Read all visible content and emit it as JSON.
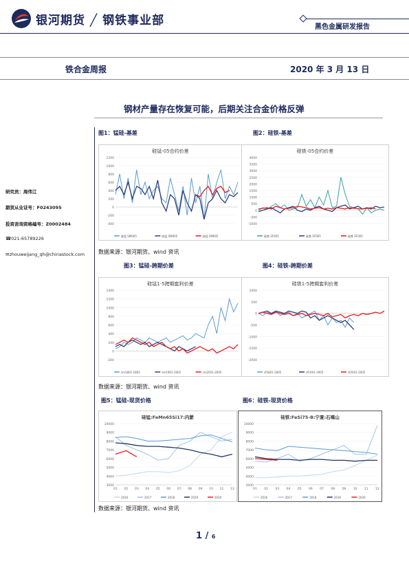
{
  "header": {
    "brand": "银河期货 ╱ 钢铁事业部",
    "report_type": "黑色金属研发报告",
    "colors": {
      "brand": "#1d2a5c",
      "logo_red": "#e23b2e"
    }
  },
  "band": {
    "report_name": "铁合金周报",
    "date": "2020 年 3 月 13 日"
  },
  "title": "钢材产量存在恢复可能，后期关注合金价格反弹",
  "sidebar": {
    "analyst": "研究员：周伟江",
    "license": "期货从业证号：F0243095",
    "advisor": "投资咨询资格编号：Z0002484",
    "phone": "☎021-65789226",
    "email": "✉zhouweijang_qh@chinastock.com"
  },
  "figures": {
    "fig1_caption": "图1：锰硅-基差",
    "fig2_caption": "图2：硅铁-基差",
    "fig3_caption": "图3：锰硅-跨期价差",
    "fig4_caption": "图4：硅铁-跨期价差",
    "fig5_caption": "图5：锰硅-现货价格",
    "fig6_caption": "图6：硅铁-现货价格",
    "source1": "数据来源：银河期货、wind 资讯",
    "source2": "数据来源：银河期货、wind 资讯",
    "source3": "数据来源：银河期货、wind 资讯"
  },
  "pager": {
    "current": "1",
    "sep": "/",
    "total": "6"
  },
  "chart_data": [
    {
      "type": "line",
      "title": "硅锰-05合约价差",
      "ylim": [
        -400,
        1200
      ],
      "y_ticks": [
        "1200",
        "1000",
        "800",
        "600",
        "400",
        "200",
        "0",
        "-200",
        "-400"
      ],
      "series": [
        {
          "name": "硅锰 SM005",
          "color": "#5b9bd5",
          "values": [
            300,
            800,
            200,
            700,
            100,
            900,
            300,
            600,
            200,
            400,
            500,
            200,
            100,
            700,
            300,
            -100,
            500,
            -200,
            700,
            100,
            500,
            -300,
            800,
            200,
            600,
            900,
            200,
            500,
            300,
            600
          ]
        },
        {
          "name": "硅锰 SM005",
          "color": "#2f3f7a",
          "values": [
            400,
            500,
            300,
            600,
            200,
            500,
            450,
            300,
            500,
            200,
            650,
            100,
            -100,
            300,
            200,
            -200,
            400,
            100,
            -100,
            300,
            200,
            -300,
            100,
            200,
            400,
            200,
            100,
            300,
            250,
            350
          ]
        },
        {
          "name": "硅锰 SM005",
          "color": "#e8181f",
          "values": [
            null,
            null,
            null,
            null,
            null,
            null,
            null,
            null,
            null,
            null,
            null,
            null,
            null,
            null,
            null,
            null,
            null,
            null,
            null,
            300,
            250,
            400,
            500,
            300,
            450,
            500,
            350,
            400,
            null,
            null
          ]
        }
      ]
    },
    {
      "type": "line",
      "title": "硅铁-05合约价差",
      "ylim": [
        -1000,
        4000
      ],
      "y_ticks": [
        "4000",
        "3500",
        "3000",
        "2500",
        "2000",
        "1500",
        "1000",
        "500",
        "0",
        "-500",
        "-1000"
      ],
      "series": [
        {
          "name": "硅铁 SF005",
          "color": "#3aa0a0",
          "values": [
            0,
            200,
            100,
            300,
            500,
            200,
            400,
            0,
            100,
            200,
            1200,
            300,
            800,
            200,
            1000,
            400,
            1500,
            200,
            300,
            2500,
            1200,
            300,
            200,
            100,
            -300,
            200,
            -200,
            0,
            100,
            0
          ]
        },
        {
          "name": "硅铁 SF005",
          "color": "#2f3f7a",
          "values": [
            -100,
            0,
            100,
            200,
            0,
            -200,
            100,
            200,
            300,
            0,
            -100,
            100,
            0,
            200,
            300,
            100,
            0,
            -100,
            200,
            300,
            400,
            100,
            200,
            300,
            100,
            200,
            100,
            300,
            200,
            250
          ]
        },
        {
          "name": "硅铁 SF005",
          "color": "#e8181f",
          "values": [
            100,
            150,
            200,
            100,
            300,
            200,
            100,
            150,
            200,
            300,
            250,
            200,
            100,
            150,
            200,
            100,
            150,
            100,
            200,
            150,
            100,
            200,
            150,
            120,
            100,
            150,
            200,
            100,
            null,
            null
          ]
        }
      ]
    },
    {
      "type": "line",
      "title": "硅锰1-5跨期套利价差",
      "ylim": [
        -200,
        1400
      ],
      "y_ticks": [
        "1400",
        "1200",
        "1000",
        "800",
        "600",
        "400",
        "200",
        "0",
        "-200"
      ],
      "series": [
        {
          "name": "sm1801-1805",
          "color": "#5b9bd5",
          "values": [
            50,
            100,
            200,
            150,
            200,
            300,
            250,
            200,
            300,
            250,
            200,
            250,
            300,
            200,
            250,
            300,
            350,
            250,
            300,
            400,
            350,
            300,
            600,
            800,
            400,
            1000,
            700,
            1200,
            900,
            1100
          ]
        },
        {
          "name": "sm1901-1905",
          "color": "#2f3f7a",
          "values": [
            100,
            150,
            100,
            200,
            250,
            200,
            150,
            200,
            100,
            150,
            200,
            150,
            100,
            50,
            0,
            100,
            50,
            0,
            50,
            100,
            null,
            null,
            null,
            null,
            null,
            null,
            null,
            null,
            null,
            null
          ]
        },
        {
          "name": "sm2001-2005",
          "color": "#e8181f",
          "values": [
            150,
            200,
            250,
            200,
            300,
            250,
            200,
            150,
            200,
            100,
            150,
            200,
            100,
            50,
            100,
            0,
            50,
            -50,
            0,
            50,
            100,
            50,
            0,
            50,
            -50,
            0,
            50,
            100,
            50,
            150
          ]
        }
      ]
    },
    {
      "type": "line",
      "title": "硅铁1-5跨期套利价差",
      "ylim": [
        -2000,
        1000
      ],
      "y_ticks": [
        "1000",
        "500",
        "0",
        "-500",
        "-1000",
        "-1500",
        "-2000"
      ],
      "series": [
        {
          "name": "sf1801-1805",
          "color": "#5b9bd5",
          "values": [
            0,
            -100,
            50,
            -50,
            100,
            -100,
            0,
            50,
            -100,
            0,
            -200,
            -100,
            0,
            100,
            -300,
            -100,
            -500,
            -200,
            -400,
            -300,
            -600,
            -200,
            -400,
            null,
            null,
            null,
            null,
            null,
            null,
            null
          ]
        },
        {
          "name": "sf1901-1905",
          "color": "#2f3f7a",
          "values": [
            0,
            50,
            100,
            0,
            100,
            50,
            0,
            100,
            50,
            0,
            100,
            50,
            -200,
            -100,
            -300,
            -200,
            -100,
            -200,
            -300,
            -400,
            -300,
            -500,
            -700,
            null,
            null,
            null,
            null,
            null,
            null,
            null
          ]
        },
        {
          "name": "sf2001-2005",
          "color": "#e8181f",
          "values": [
            0,
            50,
            0,
            -50,
            50,
            0,
            -50,
            0,
            -100,
            -50,
            0,
            -100,
            -50,
            0,
            -50,
            -100,
            0,
            -150,
            -100,
            -50,
            -200,
            -100,
            -50,
            -100,
            0,
            -50,
            0,
            50,
            0,
            100
          ]
        }
      ]
    },
    {
      "type": "line",
      "title": "硅锰:FeMn65Si17:内蒙",
      "ylim": [
        3000,
        10000
      ],
      "y_ticks": [
        "10000",
        "9000",
        "8000",
        "7000",
        "6000",
        "5000",
        "4000",
        "3000"
      ],
      "categories": [
        "01",
        "02",
        "03",
        "04",
        "05",
        "06",
        "07",
        "08",
        "09",
        "10",
        "11",
        "12"
      ],
      "series": [
        {
          "name": "2016",
          "color": "#bdd7ee",
          "values": [
            4000,
            4100,
            4300,
            4500,
            4500,
            4400,
            4600,
            5200,
            6500,
            7000,
            8500,
            9000
          ]
        },
        {
          "name": "2017",
          "color": "#9dc3e6",
          "values": [
            8500,
            7500,
            7000,
            6500,
            5800,
            6000,
            7500,
            8000,
            9000,
            8500,
            8000,
            8200
          ]
        },
        {
          "name": "2018",
          "color": "#5b9bd5",
          "values": [
            8400,
            8500,
            8300,
            8000,
            8000,
            8100,
            8200,
            8300,
            8600,
            8700,
            8300,
            7900
          ]
        },
        {
          "name": "2019",
          "color": "#203864",
          "values": [
            7800,
            7700,
            7500,
            7400,
            7400,
            7300,
            7200,
            7000,
            6700,
            6500,
            6200,
            6500
          ]
        },
        {
          "name": "2020",
          "color": "#e8181f",
          "values": [
            6500,
            6900,
            6200,
            null,
            null,
            null,
            null,
            null,
            null,
            null,
            null,
            null
          ]
        }
      ]
    },
    {
      "type": "line",
      "title": "硅铁:FeSi75-B:宁夏:石嘴山",
      "ylim": [
        3000,
        10000
      ],
      "y_ticks": [
        "10000",
        "9000",
        "8000",
        "7000",
        "6000",
        "5000",
        "4000",
        "3000"
      ],
      "categories": [
        "01",
        "02",
        "03",
        "04",
        "05",
        "06",
        "07",
        "08",
        "09",
        "10",
        "11",
        "12"
      ],
      "series": [
        {
          "name": "2016",
          "color": "#bdd7ee",
          "values": [
            3800,
            3800,
            3900,
            4000,
            4000,
            4100,
            4200,
            4500,
            4700,
            5200,
            5800,
            6400
          ]
        },
        {
          "name": "2017",
          "color": "#9dc3e6",
          "values": [
            5700,
            5600,
            6000,
            6500,
            5700,
            6000,
            6500,
            7000,
            7500,
            6500,
            6500,
            9800
          ]
        },
        {
          "name": "2018",
          "color": "#5b9bd5",
          "values": [
            7200,
            7000,
            6900,
            7400,
            7300,
            7200,
            7100,
            7000,
            6900,
            6800,
            6700,
            6500
          ]
        },
        {
          "name": "2019",
          "color": "#203864",
          "values": [
            6200,
            6000,
            5900,
            5900,
            5800,
            5900,
            5900,
            5800,
            5800,
            5700,
            5800,
            5800
          ]
        },
        {
          "name": "2020",
          "color": "#e8181f",
          "values": [
            6000,
            5900,
            5800,
            null,
            null,
            null,
            null,
            null,
            null,
            null,
            null,
            null
          ]
        }
      ]
    }
  ]
}
